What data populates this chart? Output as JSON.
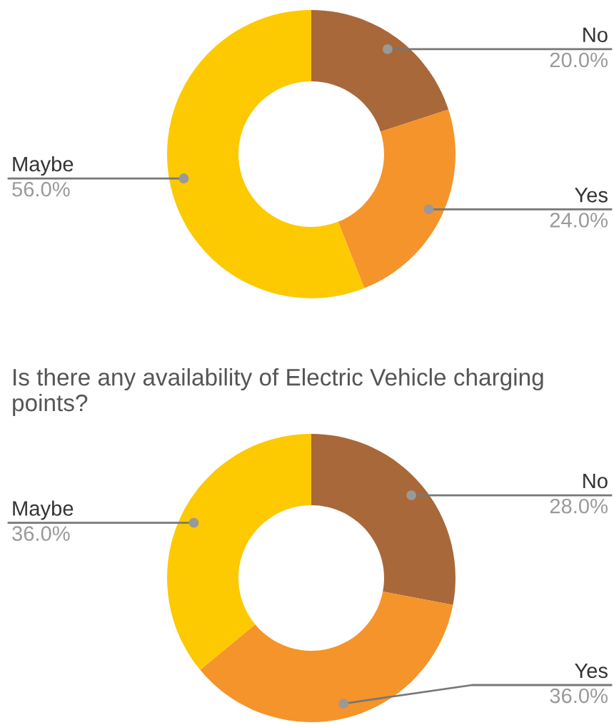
{
  "chart_data": [
    {
      "type": "donut",
      "categories": [
        "No",
        "Yes",
        "Maybe"
      ],
      "values": [
        20,
        24,
        56
      ],
      "value_labels": [
        "20.0%",
        "24.0%",
        "56.0%"
      ],
      "colors": [
        "#a8683a",
        "#f4942a",
        "#fdc900"
      ],
      "legend": false
    },
    {
      "type": "donut",
      "title": "Is there any availability of Electric Vehicle charging points?",
      "categories": [
        "No",
        "Yes",
        "Maybe"
      ],
      "values": [
        28,
        36,
        36
      ],
      "value_labels": [
        "28.0%",
        "36.0%",
        "36.0%"
      ],
      "colors": [
        "#a8683a",
        "#f4942a",
        "#fdc900"
      ],
      "legend": false
    }
  ]
}
